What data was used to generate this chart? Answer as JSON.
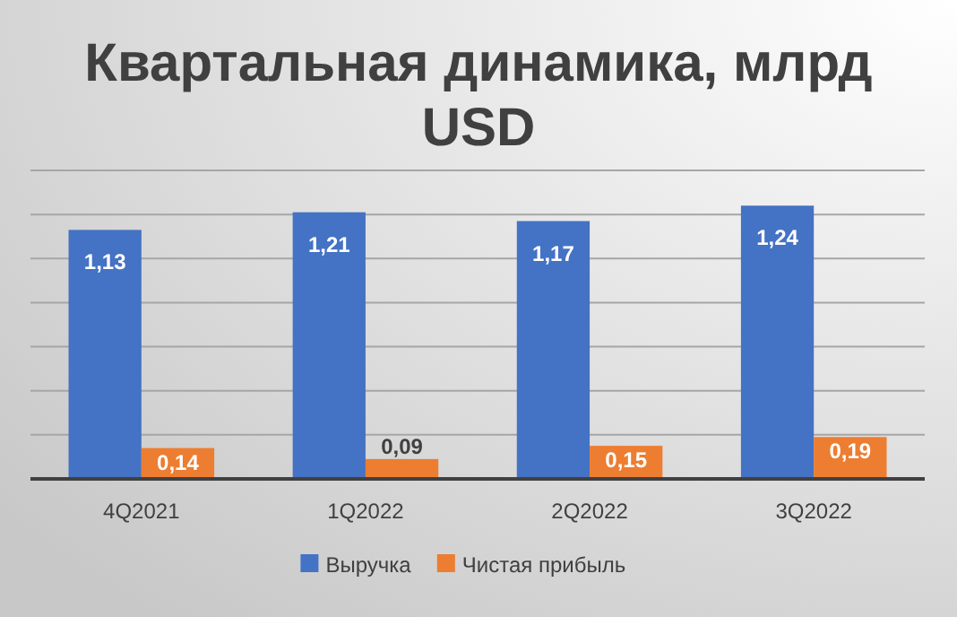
{
  "chart_data": {
    "type": "bar",
    "title": "Квартальная динамика, млрд USD",
    "categories": [
      "4Q2021",
      "1Q2022",
      "2Q2022",
      "3Q2022"
    ],
    "series": [
      {
        "name": "Выручка",
        "color": "#4472c4",
        "values": [
          1.13,
          1.21,
          1.17,
          1.24
        ],
        "value_labels": [
          "1,13",
          "1,21",
          "1,17",
          "1,24"
        ]
      },
      {
        "name": "Чистая прибыль",
        "color": "#ed7d31",
        "values": [
          0.14,
          0.09,
          0.15,
          0.19
        ],
        "value_labels": [
          "0,14",
          "0,09",
          "0,15",
          "0,19"
        ]
      }
    ],
    "ylim": [
      0,
      1.4
    ],
    "yticks": [
      {
        "value": 0,
        "label": null
      },
      {
        "value": 0.2,
        "label": null
      },
      {
        "value": 0.4,
        "label": null
      },
      {
        "value": 0.6,
        "label": null
      },
      {
        "value": 0.8,
        "label": null
      },
      {
        "value": 1.0,
        "label": null
      },
      {
        "value": 1.2,
        "label": null
      },
      {
        "value": 1.4,
        "label": null
      }
    ],
    "grid": "y",
    "legend": "bottom",
    "tick_labels": "x"
  }
}
